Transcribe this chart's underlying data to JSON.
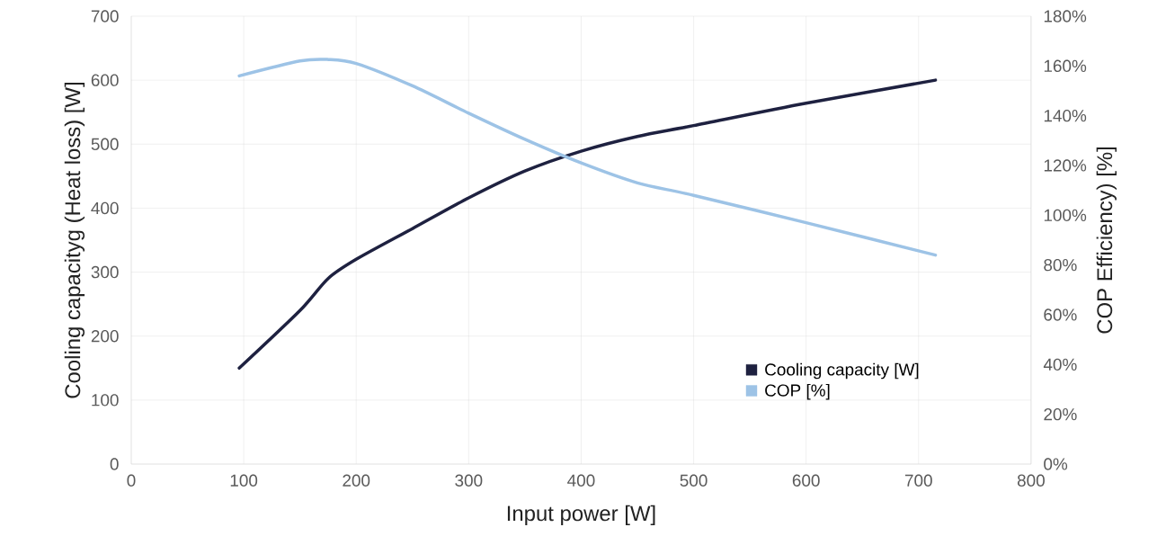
{
  "chart_data": {
    "type": "line",
    "xlabel": "Input power [W]",
    "ylabel": "Cooling capacityg (Heat loss) [W]",
    "y2label": "COP Efficiency) [%]",
    "xlim": [
      0,
      800
    ],
    "xticks": [
      0,
      100,
      200,
      300,
      400,
      500,
      600,
      700,
      800
    ],
    "ylim": [
      0,
      700
    ],
    "yticks": [
      0,
      100,
      200,
      300,
      400,
      500,
      600,
      700
    ],
    "y2lim": [
      0,
      180
    ],
    "y2ticks": [
      {
        "value": 0,
        "label": "0%"
      },
      {
        "value": 20,
        "label": "20%"
      },
      {
        "value": 40,
        "label": "40%"
      },
      {
        "value": 60,
        "label": "60%"
      },
      {
        "value": 80,
        "label": "80%"
      },
      {
        "value": 100,
        "label": "100%"
      },
      {
        "value": 120,
        "label": "120%"
      },
      {
        "value": 140,
        "label": "140%"
      },
      {
        "value": 160,
        "label": "160%"
      },
      {
        "value": 180,
        "label": "180%"
      }
    ],
    "grid": true,
    "legend": "bottom right",
    "marker": "none",
    "line_style": "solid",
    "series": [
      {
        "name": "Cooling capacity [W]",
        "color": "#1e2140",
        "x": [
          96,
          150,
          175,
          200,
          250,
          300,
          350,
          400,
          450,
          500,
          600,
          715
        ],
        "values": [
          150,
          240,
          290,
          320,
          368,
          416,
          458,
          489,
          512,
          529,
          564,
          600
        ]
      },
      {
        "name": "COP [%]",
        "color": "#9dc3e6",
        "axis": "y2",
        "x": [
          96,
          150,
          175,
          200,
          250,
          300,
          350,
          400,
          450,
          500,
          600,
          715
        ],
        "values": [
          156,
          162,
          162.6,
          161,
          152,
          141,
          130.5,
          121,
          113,
          108,
          97,
          84
        ]
      }
    ]
  }
}
